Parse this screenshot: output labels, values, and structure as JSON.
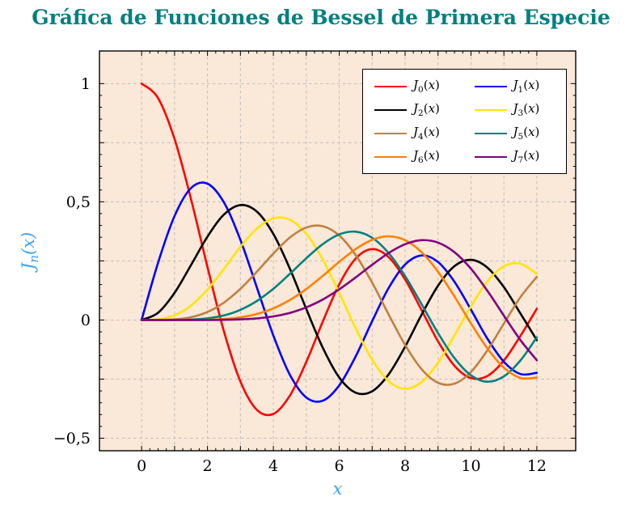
{
  "title": "Gráfica de Funciones de Bessel de Primera Especie",
  "ylabel": {
    "base": "J",
    "sub": "n",
    "open": "(",
    "var": "x",
    "close": ")"
  },
  "colors": {
    "title": "#008080",
    "axis_label": "#38a3f2",
    "plot_bg": "#fae8d8",
    "grid": "#b9b9b9",
    "frame": "#000000",
    "tick": "#000000",
    "tick_label": "#000000",
    "legend_border": "#000000"
  },
  "chart_data": {
    "type": "line",
    "title": "Gráfica de Funciones de Bessel de Primera Especie",
    "xlabel": "x",
    "ylabel": "J_n(x)",
    "xlim": [
      -1.28,
      13.18
    ],
    "ylim": [
      -0.553,
      1.138
    ],
    "grid": "dashed major grid, x every 1, y every 0.25",
    "legend_position": "top-right",
    "legend_columns": 2,
    "xticks": {
      "values": [
        0,
        2,
        4,
        6,
        8,
        10,
        12
      ],
      "labels": [
        "0",
        "2",
        "4",
        "6",
        "8",
        "10",
        "12"
      ]
    },
    "yticks": {
      "values": [
        -0.5,
        0,
        0.5,
        1
      ],
      "labels": [
        "−0,5",
        "0",
        "0,5",
        "1"
      ]
    },
    "x_grid": [
      0,
      1,
      2,
      3,
      4,
      5,
      6,
      7,
      8,
      9,
      10,
      11,
      12
    ],
    "y_grid": [
      -0.5,
      -0.25,
      0,
      0.25,
      0.5,
      0.75,
      1
    ],
    "x": [
      0,
      0.5,
      1,
      1.5,
      2,
      2.5,
      3,
      3.5,
      4,
      4.5,
      5,
      5.5,
      6,
      6.5,
      7,
      7.5,
      8,
      8.5,
      9,
      9.5,
      10,
      10.5,
      11,
      11.5,
      12
    ],
    "series": [
      {
        "name": "J_0(x)",
        "color": "#ff0000",
        "values": [
          1.0,
          0.9385,
          0.7652,
          0.5118,
          0.2239,
          -0.0484,
          -0.2601,
          -0.3801,
          -0.3971,
          -0.3205,
          -0.1776,
          -0.0068,
          0.1506,
          0.2601,
          0.3001,
          0.2663,
          0.1717,
          0.0419,
          -0.0903,
          -0.1939,
          -0.2459,
          -0.2366,
          -0.1712,
          -0.0677,
          0.0477
        ]
      },
      {
        "name": "J_1(x)",
        "color": "#0000ff",
        "values": [
          0,
          0.2423,
          0.4401,
          0.5579,
          0.5767,
          0.4971,
          0.3391,
          0.1374,
          -0.066,
          -0.2311,
          -0.3276,
          -0.3414,
          -0.2767,
          -0.1538,
          -0.0047,
          0.1352,
          0.2346,
          0.2731,
          0.2453,
          0.1613,
          0.0435,
          -0.0789,
          -0.1768,
          -0.2284,
          -0.2234
        ]
      },
      {
        "name": "J_2(x)",
        "color": "#000000",
        "values": [
          0,
          0.0306,
          0.1149,
          0.2321,
          0.3528,
          0.4461,
          0.4861,
          0.4586,
          0.3641,
          0.2178,
          0.0466,
          -0.1173,
          -0.2429,
          -0.3074,
          -0.3014,
          -0.2303,
          -0.113,
          0.0224,
          0.1448,
          0.2279,
          0.2546,
          0.2216,
          0.139,
          0.028,
          -0.0849
        ]
      },
      {
        "name": "J_3(x)",
        "color": "#ffe500",
        "values": [
          0,
          0.0026,
          0.0196,
          0.061,
          0.1289,
          0.2166,
          0.3091,
          0.3867,
          0.4302,
          0.4247,
          0.3648,
          0.2561,
          0.1148,
          -0.0354,
          -0.1676,
          -0.258,
          -0.2911,
          -0.2626,
          -0.1809,
          -0.0653,
          0.0584,
          0.1633,
          0.2273,
          0.2381,
          0.1951
        ]
      },
      {
        "name": "J_4(x)",
        "color": "#bf8040",
        "values": [
          0,
          0.0002,
          0.0025,
          0.0118,
          0.034,
          0.0738,
          0.132,
          0.2044,
          0.2811,
          0.3485,
          0.3912,
          0.3967,
          0.3576,
          0.2747,
          0.1578,
          0.0238,
          -0.1054,
          -0.2078,
          -0.2655,
          -0.2691,
          -0.2196,
          -0.1283,
          -0.015,
          0.0962,
          0.1825
        ]
      },
      {
        "name": "J_5(x)",
        "color": "#008080",
        "values": [
          0,
          0,
          0.0002,
          0.0018,
          0.007,
          0.0195,
          0.043,
          0.0804,
          0.1321,
          0.1949,
          0.2611,
          0.3209,
          0.3621,
          0.3735,
          0.3479,
          0.2834,
          0.1858,
          0.067,
          -0.055,
          -0.1613,
          -0.2341,
          -0.2611,
          -0.2383,
          -0.1712,
          -0.0735
        ]
      },
      {
        "name": "J_6(x)",
        "color": "#ff8000",
        "values": [
          0,
          0,
          0,
          0.0002,
          0.0012,
          0.0042,
          0.0114,
          0.0254,
          0.0491,
          0.0843,
          0.131,
          0.1868,
          0.2458,
          0.2999,
          0.3392,
          0.3541,
          0.3376,
          0.2866,
          0.2043,
          0.0993,
          -0.0145,
          -0.1204,
          -0.2016,
          -0.2451,
          -0.2437
        ]
      },
      {
        "name": "J_7(x)",
        "color": "#800080",
        "values": [
          0,
          0,
          0,
          0,
          0.0002,
          0.0008,
          0.0025,
          0.0067,
          0.0152,
          0.03,
          0.0534,
          0.0866,
          0.1296,
          0.1802,
          0.2336,
          0.2832,
          0.3206,
          0.3376,
          0.3274,
          0.2867,
          0.2167,
          0.1235,
          0.0184,
          -0.0846,
          -0.1703
        ]
      }
    ]
  }
}
